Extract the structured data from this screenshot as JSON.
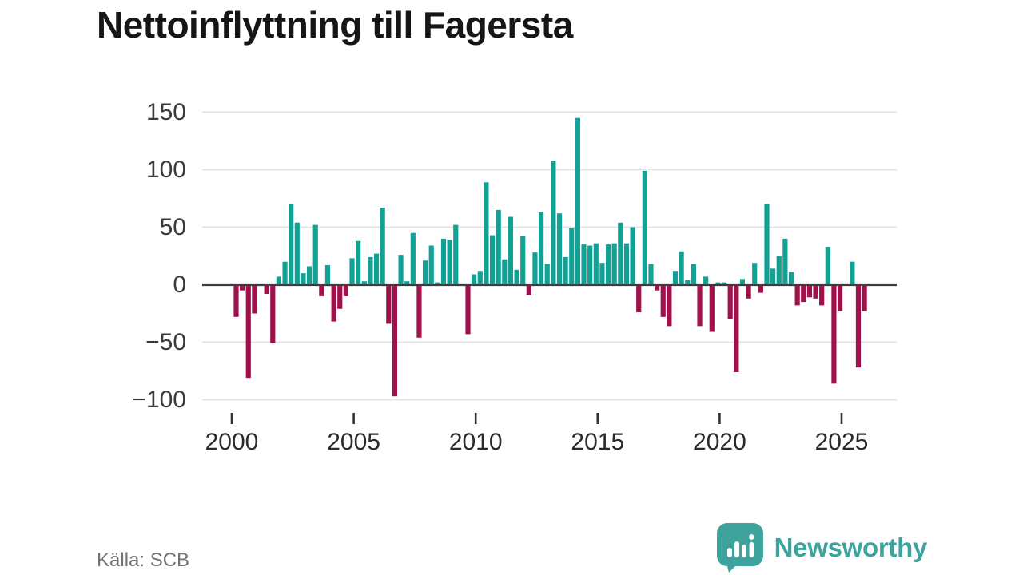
{
  "header": {
    "title": "Nettoinflyttning till Fagersta"
  },
  "footer": {
    "source": "Källa: SCB",
    "brand": "Newsworthy"
  },
  "colors": {
    "positive": "#12A295",
    "negative": "#A0104A",
    "brand": "#3EA39C",
    "grid": "#E4E4E4",
    "zero_line": "#3D3D3D",
    "axis_text": "#3A3A3A",
    "title_text": "#161616",
    "source_text": "#737373"
  },
  "chart_data": {
    "type": "bar",
    "title": "Nettoinflyttning till Fagersta",
    "xlabel": "",
    "ylabel": "",
    "grid": true,
    "legend": "none",
    "x_ticks": [
      2000,
      2005,
      2010,
      2015,
      2020,
      2025
    ],
    "y_ticks": [
      150,
      100,
      50,
      0,
      -50,
      -100
    ],
    "ylim": [
      -100,
      150
    ],
    "start_year": 2000,
    "frequency": "quarterly",
    "positive_color": "#12A295",
    "negative_color": "#A0104A",
    "values": [
      -28,
      -5,
      -81,
      -25,
      0,
      -8,
      -51,
      7,
      20,
      70,
      54,
      10,
      16,
      52,
      -10,
      17,
      -32,
      -21,
      -10,
      23,
      38,
      3,
      24,
      27,
      67,
      -34,
      -97,
      26,
      3,
      45,
      -46,
      21,
      34,
      2,
      40,
      39,
      52,
      0,
      -43,
      9,
      12,
      89,
      43,
      65,
      22,
      59,
      13,
      42,
      -9,
      28,
      63,
      18,
      108,
      62,
      24,
      49,
      145,
      35,
      34,
      36,
      19,
      35,
      36,
      54,
      36,
      50,
      -24,
      99,
      18,
      -5,
      -28,
      -36,
      12,
      29,
      4,
      18,
      -36,
      7,
      -41,
      2,
      2,
      -30,
      -76,
      5,
      -12,
      19,
      -7,
      70,
      14,
      25,
      40,
      11,
      -18,
      -15,
      -11,
      -12,
      -18,
      33,
      -86,
      -23,
      0,
      20,
      -72,
      -23
    ]
  }
}
